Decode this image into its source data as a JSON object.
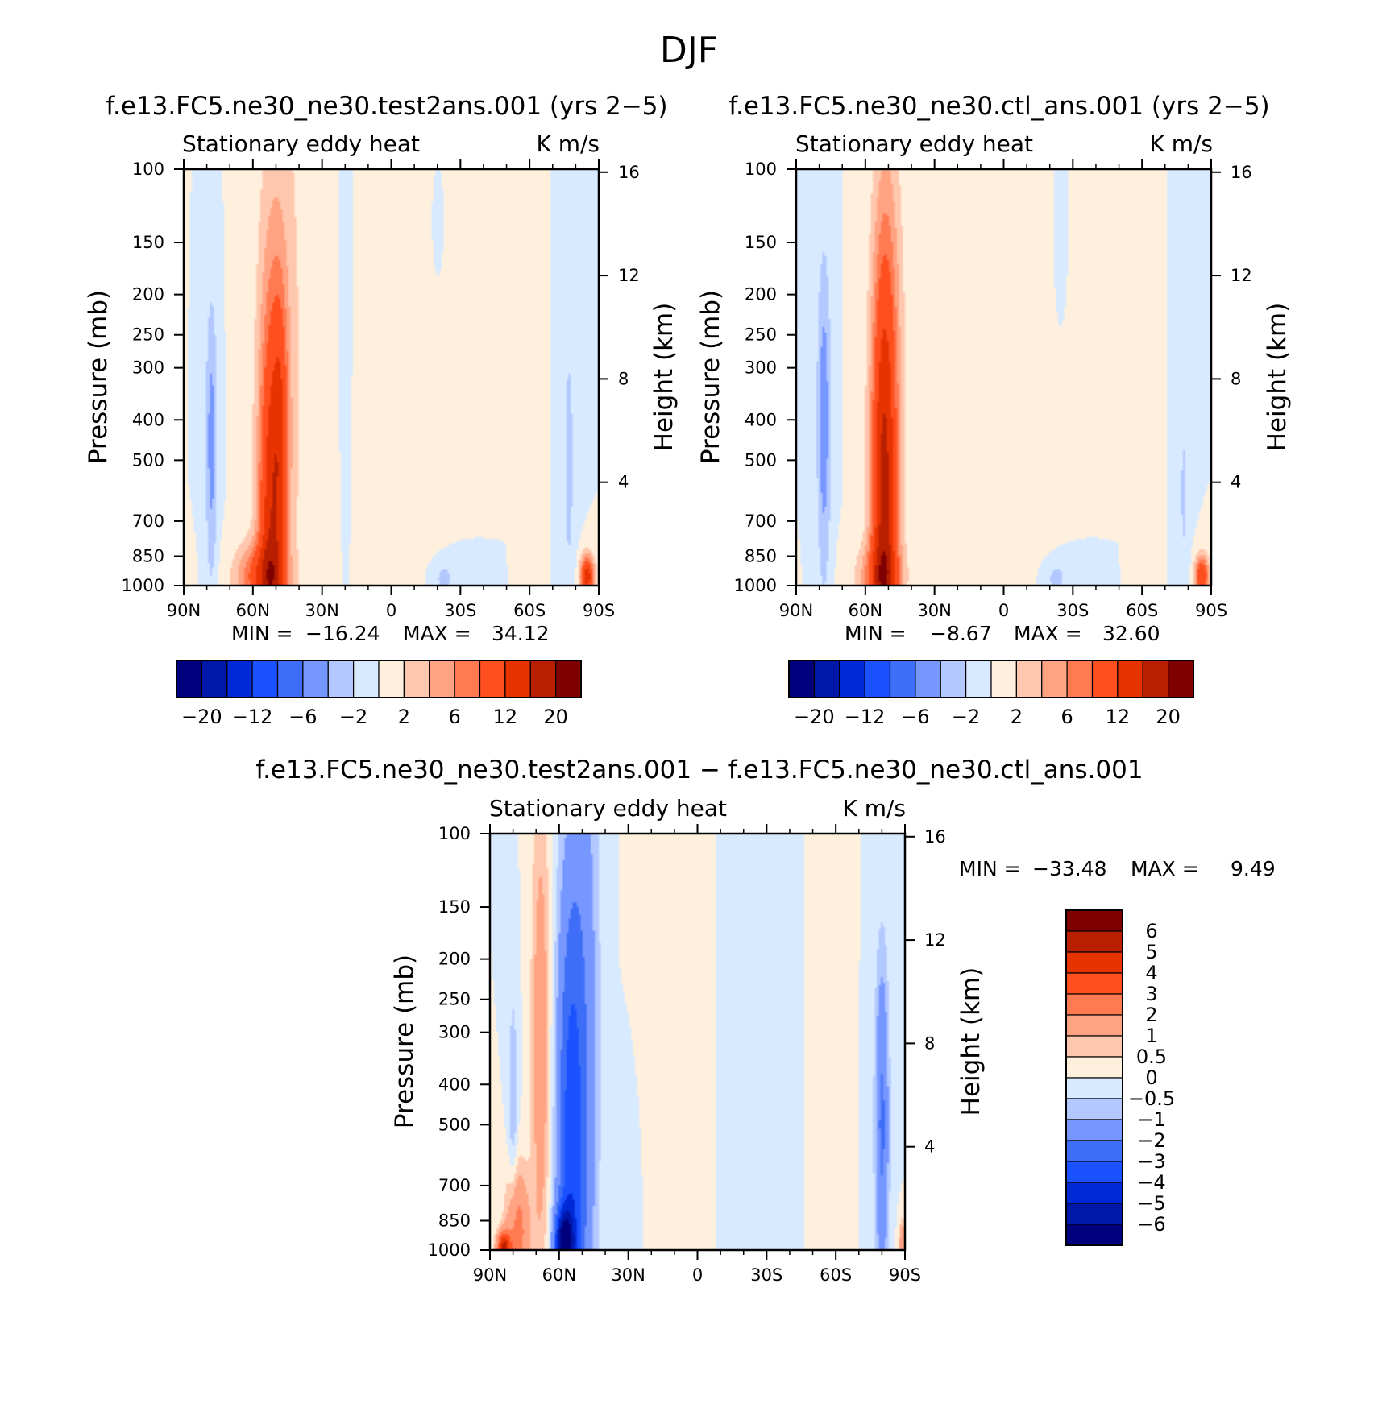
{
  "page_title": "DJF",
  "chart_data": [
    {
      "type": "heatmap",
      "title": "f.e13.FC5.ne30_ne30.test2ans.001 (yrs 2−5)",
      "subtitle_left": "Stationary eddy heat",
      "subtitle_right": "K m/s",
      "ylabel": "Pressure (mb)",
      "ylabel_right": "Height (km)",
      "x_ticks": [
        "90N",
        "60N",
        "30N",
        "0",
        "30S",
        "60S",
        "90S"
      ],
      "x_range": [
        90,
        -90
      ],
      "y_ticks": [
        100,
        150,
        200,
        250,
        300,
        400,
        500,
        700,
        850,
        1000
      ],
      "y_ticks_right": [
        16,
        12,
        8,
        4
      ],
      "stats": {
        "min_label": "MIN =",
        "min": "−16.24",
        "max_label": "MAX =",
        "max": "34.12"
      },
      "colorbar_labels": [
        "−20",
        "−12",
        "−6",
        "−2",
        "2",
        "6",
        "12",
        "20"
      ],
      "colorbar_levels": [
        -20,
        -16,
        -12,
        -8,
        -6,
        -4,
        -2,
        0,
        2,
        4,
        6,
        8,
        12,
        16,
        20
      ],
      "colorbar_orientation": "horizontal",
      "features": [
        {
          "lat": 52,
          "p": 800,
          "sx": 5.5,
          "sy": 0.55,
          "v": 13
        },
        {
          "lat": 48,
          "p": 400,
          "sx": 3.2,
          "sy": 0.3,
          "v": 5
        },
        {
          "lat": 58,
          "p": 950,
          "sx": 10,
          "sy": 0.08,
          "v": 8
        },
        {
          "lat": 48,
          "p": 300,
          "sx": 10,
          "sy": 0.9,
          "v": 3.5
        },
        {
          "lat": 78,
          "p": 450,
          "sx": 2.5,
          "sy": 0.35,
          "v": -5
        },
        {
          "lat": 10,
          "p": 400,
          "sx": 3,
          "sy": 0.8,
          "v": 0.3
        },
        {
          "lat": -17,
          "p": 500,
          "sx": 8,
          "sy": 0.6,
          "v": 1.3
        },
        {
          "lat": -62,
          "p": 500,
          "sx": 3,
          "sy": 0.4,
          "v": 1.1
        },
        {
          "lat": -22,
          "p": 960,
          "sx": 7,
          "sy": 0.06,
          "v": -3
        },
        {
          "lat": -77,
          "p": 500,
          "sx": 3,
          "sy": 0.45,
          "v": -2.5
        },
        {
          "lat": -85,
          "p": 950,
          "sx": 3,
          "sy": 0.05,
          "v": 14
        },
        {
          "lat": -20,
          "p": 140,
          "sx": 2.2,
          "sy": 0.12,
          "v": -1.5
        },
        {
          "lat": 20,
          "p": 180,
          "sx": 1.2,
          "sy": 0.3,
          "v": -1.2
        }
      ]
    },
    {
      "type": "heatmap",
      "title": "f.e13.FC5.ne30_ne30.ctl_ans.001 (yrs 2−5)",
      "subtitle_left": "Stationary eddy heat",
      "subtitle_right": "K m/s",
      "ylabel": "Pressure (mb)",
      "ylabel_right": "Height (km)",
      "x_ticks": [
        "90N",
        "60N",
        "30N",
        "0",
        "30S",
        "60S",
        "90S"
      ],
      "x_range": [
        90,
        -90
      ],
      "y_ticks": [
        100,
        150,
        200,
        250,
        300,
        400,
        500,
        700,
        850,
        1000
      ],
      "y_ticks_right": [
        16,
        12,
        8,
        4
      ],
      "stats": {
        "min_label": "MIN =",
        "min": "−8.67",
        "max_label": "MAX =",
        "max": "32.60"
      },
      "colorbar_labels": [
        "−20",
        "−12",
        "−6",
        "−2",
        "2",
        "6",
        "12",
        "20"
      ],
      "colorbar_levels": [
        -20,
        -16,
        -12,
        -8,
        -6,
        -4,
        -2,
        0,
        2,
        4,
        6,
        8,
        12,
        16,
        20
      ],
      "colorbar_orientation": "horizontal",
      "features": [
        {
          "lat": 52,
          "p": 700,
          "sx": 5.5,
          "sy": 0.6,
          "v": 15
        },
        {
          "lat": 50,
          "p": 280,
          "sx": 7,
          "sy": 0.6,
          "v": 4
        },
        {
          "lat": 54,
          "p": 950,
          "sx": 10,
          "sy": 0.08,
          "v": 6
        },
        {
          "lat": 78,
          "p": 400,
          "sx": 3,
          "sy": 0.4,
          "v": -5.5
        },
        {
          "lat": 10,
          "p": 400,
          "sx": 3,
          "sy": 0.8,
          "v": 0.3
        },
        {
          "lat": -17,
          "p": 480,
          "sx": 8,
          "sy": 0.6,
          "v": 1.3
        },
        {
          "lat": -62,
          "p": 500,
          "sx": 3,
          "sy": 0.4,
          "v": 1.1
        },
        {
          "lat": -22,
          "p": 960,
          "sx": 7,
          "sy": 0.06,
          "v": -3
        },
        {
          "lat": -78,
          "p": 600,
          "sx": 2.5,
          "sy": 0.35,
          "v": -2.2
        },
        {
          "lat": -86,
          "p": 950,
          "sx": 3,
          "sy": 0.05,
          "v": 12
        },
        {
          "lat": -24,
          "p": 150,
          "sx": 2.5,
          "sy": 0.2,
          "v": -1.2
        }
      ]
    },
    {
      "type": "heatmap",
      "title": "f.e13.FC5.ne30_ne30.test2ans.001 − f.e13.FC5.ne30_ne30.ctl_ans.001",
      "subtitle_left": "Stationary eddy heat",
      "subtitle_right": "K m/s",
      "ylabel": "Pressure (mb)",
      "ylabel_right": "Height (km)",
      "x_ticks": [
        "90N",
        "60N",
        "30N",
        "0",
        "30S",
        "60S",
        "90S"
      ],
      "x_range": [
        90,
        -90
      ],
      "y_ticks": [
        100,
        150,
        200,
        250,
        300,
        400,
        500,
        700,
        850,
        1000
      ],
      "y_ticks_right": [
        16,
        12,
        8,
        4
      ],
      "stats": {
        "min_label": "MIN =",
        "min": "−33.48",
        "max_label": "MAX =",
        "max": "9.49"
      },
      "colorbar_labels": [
        "6",
        "5",
        "4",
        "3",
        "2",
        "1",
        "0.5",
        "0",
        "−0.5",
        "−1",
        "−2",
        "−3",
        "−4",
        "−5",
        "−6"
      ],
      "colorbar_levels": [
        -6,
        -5,
        -4,
        -3,
        -2,
        -1,
        -0.5,
        0,
        0.5,
        1,
        2,
        3,
        4,
        5,
        6
      ],
      "colorbar_orientation": "vertical",
      "features": [
        {
          "lat": 68,
          "p": 320,
          "sx": 4,
          "sy": 0.6,
          "v": 1.6
        },
        {
          "lat": 78,
          "p": 900,
          "sx": 5,
          "sy": 0.15,
          "v": 2.5
        },
        {
          "lat": 84,
          "p": 990,
          "sx": 3,
          "sy": 0.04,
          "v": 5
        },
        {
          "lat": 55,
          "p": 600,
          "sx": 6,
          "sy": 0.7,
          "v": -3.5
        },
        {
          "lat": 58,
          "p": 960,
          "sx": 4,
          "sy": 0.08,
          "v": -5
        },
        {
          "lat": 48,
          "p": 300,
          "sx": 6,
          "sy": 1.0,
          "v": -1.2
        },
        {
          "lat": 80,
          "p": 450,
          "sx": 2,
          "sy": 0.3,
          "v": -0.9
        },
        {
          "lat": -80,
          "p": 500,
          "sx": 3,
          "sy": 0.4,
          "v": -2.2
        },
        {
          "lat": -89,
          "p": 960,
          "sx": 1.5,
          "sy": 0.05,
          "v": 2
        },
        {
          "lat": -30,
          "p": 350,
          "sx": 10,
          "sy": 0.8,
          "v": -0.35
        },
        {
          "lat": 15,
          "p": 350,
          "sx": 10,
          "sy": 0.8,
          "v": 0.35
        },
        {
          "lat": -55,
          "p": 350,
          "sx": 5,
          "sy": 0.8,
          "v": 0.35
        },
        {
          "lat": 30,
          "p": 800,
          "sx": 6,
          "sy": 0.3,
          "v": -0.4
        }
      ]
    }
  ],
  "colors": {
    "blues": [
      "#00007f",
      "#0018a8",
      "#0029d6",
      "#1a52ff",
      "#3e6ef7",
      "#7697ff",
      "#b2c8ff",
      "#d8eaff"
    ],
    "reds": [
      "#fff0de",
      "#ffc8ae",
      "#ffa383",
      "#ff7a50",
      "#ff4f1f",
      "#e63300",
      "#b81f00",
      "#7f0000"
    ]
  }
}
